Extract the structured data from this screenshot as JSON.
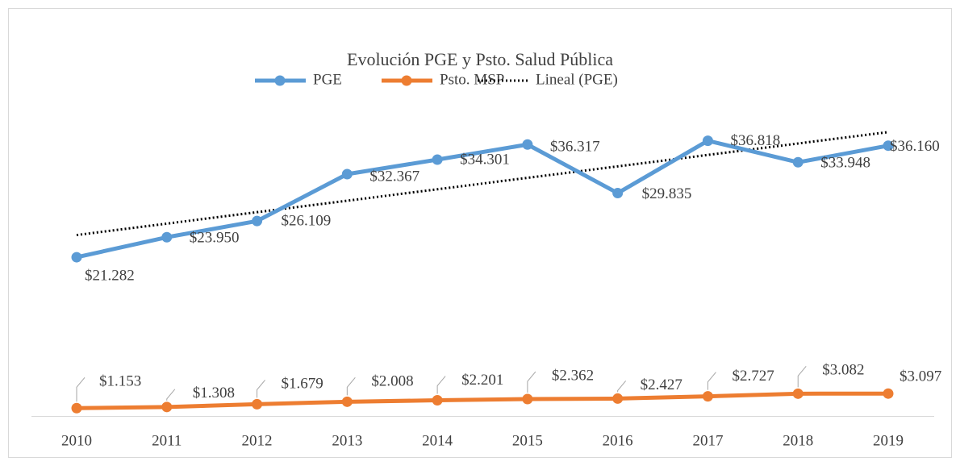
{
  "chart_data": {
    "type": "line",
    "title": "Evolución PGE y Psto. Salud Pública",
    "categories": [
      "2010",
      "2011",
      "2012",
      "2013",
      "2014",
      "2015",
      "2016",
      "2017",
      "2018",
      "2019"
    ],
    "series": [
      {
        "name": "PGE",
        "color": "#5b9bd5",
        "values": [
          21282,
          23950,
          26109,
          32367,
          34301,
          36317,
          29835,
          36818,
          33948,
          36160
        ],
        "value_labels": [
          "$21.282",
          "$23.950",
          "$26.109",
          "$32.367",
          "$34.301",
          "$36.317",
          "$29.835",
          "$36.818",
          "$33.948",
          "$36.160"
        ]
      },
      {
        "name": "Psto. MSP",
        "color": "#ed7d31",
        "values": [
          1153,
          1308,
          1679,
          2008,
          2201,
          2362,
          2427,
          2727,
          3082,
          3097
        ],
        "value_labels": [
          "$1.153",
          "$1.308",
          "$1.679",
          "$2.008",
          "$2.201",
          "$2.362",
          "$2.427",
          "$2.727",
          "$3.082",
          "$3.097"
        ]
      },
      {
        "name": "Lineal (PGE)",
        "color": "#000000",
        "style": "dotted",
        "values": [
          24240,
          25766,
          27293,
          28819,
          30346,
          31872,
          33398,
          34925,
          36451,
          37977
        ]
      }
    ],
    "ylim": [
      0,
      40000
    ]
  }
}
